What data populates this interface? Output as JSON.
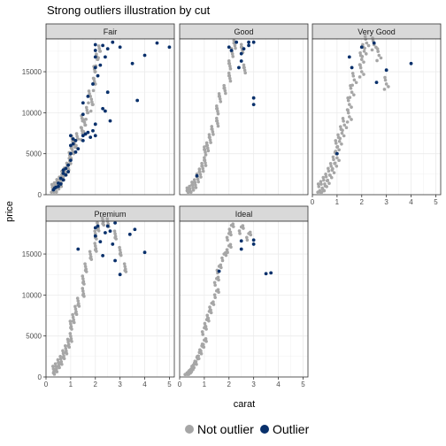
{
  "chart_data": {
    "type": "scatter",
    "title": "Strong outliers illustration by cut",
    "xlabel": "carat",
    "ylabel": "price",
    "xlim": [
      0,
      5.2
    ],
    "ylim": [
      0,
      19000
    ],
    "x_ticks": [
      0,
      1,
      2,
      3,
      4,
      5
    ],
    "y_ticks": [
      0,
      5000,
      10000,
      15000
    ],
    "grid": true,
    "legend_position": "bottom",
    "series_colors": {
      "not_outlier": "#a6a6a6",
      "outlier": "#08306b"
    },
    "legend": [
      {
        "label": "Not outlier",
        "color": "#a6a6a6"
      },
      {
        "label": "Outlier",
        "color": "#08306b"
      }
    ],
    "facets": [
      {
        "name": "Fair",
        "not_outlier": [
          [
            0.3,
            600
          ],
          [
            0.4,
            800
          ],
          [
            0.5,
            1200
          ],
          [
            0.6,
            1500
          ],
          [
            0.7,
            2200
          ],
          [
            0.8,
            2600
          ],
          [
            0.9,
            3200
          ],
          [
            1.0,
            3800
          ],
          [
            1.0,
            4500
          ],
          [
            1.1,
            5200
          ],
          [
            1.2,
            5800
          ],
          [
            1.3,
            6800
          ],
          [
            1.5,
            7500
          ],
          [
            1.5,
            9000
          ],
          [
            1.7,
            10000
          ],
          [
            1.8,
            12000
          ],
          [
            2.0,
            13500
          ],
          [
            2.0,
            15000
          ],
          [
            2.1,
            16500
          ],
          [
            0.5,
            900
          ],
          [
            0.7,
            1800
          ],
          [
            1.1,
            6500
          ],
          [
            1.6,
            8500
          ],
          [
            1.9,
            11000
          ],
          [
            2.2,
            17500
          ]
        ],
        "outlier": [
          [
            0.3,
            600
          ],
          [
            0.35,
            800
          ],
          [
            0.4,
            900
          ],
          [
            0.5,
            1000
          ],
          [
            0.5,
            1400
          ],
          [
            0.6,
            1300
          ],
          [
            0.6,
            2000
          ],
          [
            0.7,
            1800
          ],
          [
            0.7,
            2600
          ],
          [
            0.7,
            3000
          ],
          [
            0.8,
            2400
          ],
          [
            0.8,
            3200
          ],
          [
            0.9,
            2800
          ],
          [
            0.9,
            3600
          ],
          [
            1.0,
            4200
          ],
          [
            1.0,
            5000
          ],
          [
            1.0,
            6000
          ],
          [
            1.0,
            7200
          ],
          [
            1.1,
            6200
          ],
          [
            1.1,
            6800
          ],
          [
            1.2,
            5200
          ],
          [
            1.2,
            6600
          ],
          [
            1.3,
            5600
          ],
          [
            1.5,
            6600
          ],
          [
            1.5,
            7200
          ],
          [
            1.6,
            7400
          ],
          [
            1.7,
            7600
          ],
          [
            1.8,
            7000
          ],
          [
            1.9,
            7800
          ],
          [
            2.0,
            7200
          ],
          [
            2.0,
            8600
          ],
          [
            1.5,
            9800
          ],
          [
            1.5,
            11200
          ],
          [
            1.7,
            12000
          ],
          [
            1.9,
            13500
          ],
          [
            2.0,
            15500
          ],
          [
            2.0,
            16800
          ],
          [
            2.0,
            17600
          ],
          [
            2.0,
            18300
          ],
          [
            2.1,
            14500
          ],
          [
            2.2,
            15800
          ],
          [
            2.3,
            18200
          ],
          [
            2.4,
            16800
          ],
          [
            2.5,
            17800
          ],
          [
            2.5,
            12500
          ],
          [
            2.6,
            9000
          ],
          [
            2.7,
            18600
          ],
          [
            3.0,
            18000
          ],
          [
            3.5,
            16000
          ],
          [
            3.7,
            11500
          ],
          [
            4.0,
            17000
          ],
          [
            4.5,
            18500
          ],
          [
            5.0,
            18000
          ],
          [
            2.3,
            10500
          ],
          [
            2.4,
            10200
          ]
        ]
      },
      {
        "name": "Good",
        "not_outlier": [
          [
            0.3,
            500
          ],
          [
            0.4,
            700
          ],
          [
            0.5,
            1200
          ],
          [
            0.6,
            1500
          ],
          [
            0.7,
            2200
          ],
          [
            0.8,
            2800
          ],
          [
            0.9,
            3500
          ],
          [
            1.0,
            4200
          ],
          [
            1.0,
            5500
          ],
          [
            1.1,
            6000
          ],
          [
            1.2,
            7000
          ],
          [
            1.3,
            8000
          ],
          [
            1.5,
            9000
          ],
          [
            1.5,
            10500
          ],
          [
            1.6,
            12000
          ],
          [
            1.8,
            13000
          ],
          [
            2.0,
            14500
          ],
          [
            2.0,
            16000
          ],
          [
            2.1,
            17500
          ],
          [
            2.2,
            18500
          ],
          [
            2.5,
            18000
          ],
          [
            2.6,
            15500
          ]
        ],
        "outlier": [
          [
            0.7,
            2300
          ],
          [
            2.0,
            18000
          ],
          [
            2.1,
            17600
          ],
          [
            2.3,
            18600
          ],
          [
            2.4,
            15500
          ],
          [
            2.5,
            17200
          ],
          [
            2.5,
            16300
          ],
          [
            2.6,
            17800
          ],
          [
            2.8,
            18600
          ],
          [
            2.8,
            18200
          ],
          [
            3.0,
            18600
          ],
          [
            3.0,
            11800
          ],
          [
            3.0,
            11000
          ]
        ]
      },
      {
        "name": "Very Good",
        "not_outlier": [
          [
            0.3,
            500
          ],
          [
            0.4,
            800
          ],
          [
            0.5,
            1300
          ],
          [
            0.6,
            1700
          ],
          [
            0.7,
            2400
          ],
          [
            0.8,
            3000
          ],
          [
            0.9,
            3800
          ],
          [
            1.0,
            4500
          ],
          [
            1.0,
            5800
          ],
          [
            1.1,
            6500
          ],
          [
            1.2,
            7500
          ],
          [
            1.3,
            8500
          ],
          [
            1.5,
            9500
          ],
          [
            1.5,
            11000
          ],
          [
            1.6,
            12500
          ],
          [
            1.7,
            14000
          ],
          [
            2.0,
            15000
          ],
          [
            2.0,
            16500
          ],
          [
            2.1,
            17500
          ],
          [
            2.2,
            18500
          ],
          [
            2.5,
            18300
          ],
          [
            2.7,
            17000
          ],
          [
            3.0,
            13500
          ]
        ],
        "outlier": [
          [
            1.0,
            5000
          ],
          [
            1.5,
            16800
          ],
          [
            1.6,
            15500
          ],
          [
            2.0,
            18000
          ],
          [
            2.5,
            18500
          ],
          [
            2.6,
            13700
          ],
          [
            3.0,
            15200
          ],
          [
            4.0,
            16000
          ]
        ]
      },
      {
        "name": "Premium",
        "not_outlier": [
          [
            0.3,
            500
          ],
          [
            0.4,
            800
          ],
          [
            0.5,
            1300
          ],
          [
            0.6,
            1700
          ],
          [
            0.7,
            2400
          ],
          [
            0.8,
            3000
          ],
          [
            0.9,
            3800
          ],
          [
            1.0,
            4500
          ],
          [
            1.0,
            6000
          ],
          [
            1.1,
            6800
          ],
          [
            1.2,
            7800
          ],
          [
            1.3,
            8800
          ],
          [
            1.5,
            10000
          ],
          [
            1.5,
            11500
          ],
          [
            1.6,
            13000
          ],
          [
            1.8,
            14500
          ],
          [
            2.0,
            15500
          ],
          [
            2.0,
            17000
          ],
          [
            2.1,
            18000
          ],
          [
            2.3,
            18700
          ],
          [
            2.5,
            18500
          ],
          [
            2.8,
            17000
          ],
          [
            3.0,
            15000
          ],
          [
            3.2,
            13000
          ]
        ],
        "outlier": [
          [
            1.3,
            15600
          ],
          [
            2.0,
            18200
          ],
          [
            2.0,
            17200
          ],
          [
            2.1,
            18400
          ],
          [
            2.2,
            16500
          ],
          [
            2.3,
            14800
          ],
          [
            2.4,
            17600
          ],
          [
            2.5,
            18400
          ],
          [
            2.6,
            17800
          ],
          [
            2.7,
            16200
          ],
          [
            2.8,
            18800
          ],
          [
            2.8,
            14200
          ],
          [
            3.0,
            12500
          ],
          [
            3.4,
            17400
          ],
          [
            3.6,
            18000
          ],
          [
            4.0,
            15200
          ]
        ]
      },
      {
        "name": "Ideal",
        "not_outlier": [
          [
            0.3,
            500
          ],
          [
            0.4,
            800
          ],
          [
            0.5,
            1300
          ],
          [
            0.6,
            1700
          ],
          [
            0.7,
            2400
          ],
          [
            0.8,
            3000
          ],
          [
            0.9,
            3800
          ],
          [
            1.0,
            4500
          ],
          [
            1.0,
            6000
          ],
          [
            1.1,
            7000
          ],
          [
            1.2,
            8000
          ],
          [
            1.3,
            9000
          ],
          [
            1.5,
            10500
          ],
          [
            1.5,
            12000
          ],
          [
            1.6,
            13500
          ],
          [
            1.8,
            15000
          ],
          [
            2.0,
            16000
          ],
          [
            2.0,
            17500
          ],
          [
            2.1,
            18500
          ],
          [
            2.5,
            18300
          ],
          [
            2.8,
            17500
          ]
        ],
        "outlier": [
          [
            1.6,
            12900
          ],
          [
            2.5,
            16600
          ],
          [
            2.5,
            15600
          ],
          [
            3.0,
            16700
          ],
          [
            3.0,
            16200
          ],
          [
            3.5,
            12600
          ],
          [
            3.7,
            12700
          ]
        ]
      }
    ]
  }
}
